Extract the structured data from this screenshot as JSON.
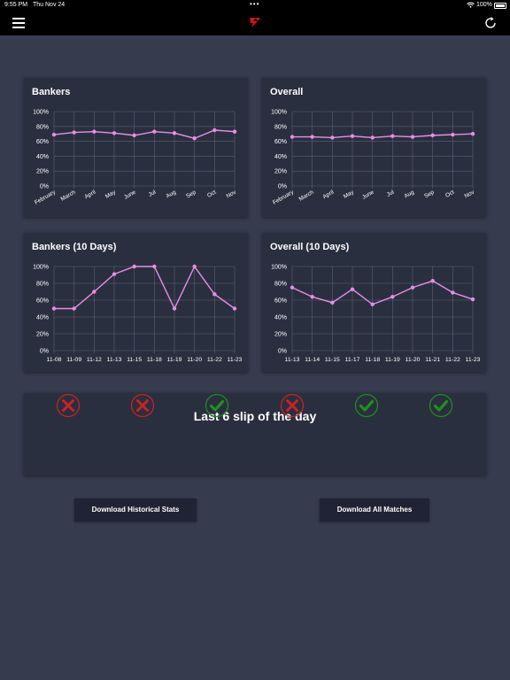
{
  "status_bar": {
    "time": "9:55 PM",
    "date": "Thu Nov 24",
    "battery": "100%"
  },
  "nav": {
    "menu_icon": "hamburger-menu-icon",
    "logo_icon": "app-logo-icon",
    "refresh_icon": "refresh-icon"
  },
  "colors": {
    "background": "#363b4e",
    "card": "#2a2f3f",
    "line": "#e88ee6",
    "grid": "#5a6075",
    "fail": "#cc2222",
    "success": "#1f8f1f"
  },
  "y_ticks": [
    "0%",
    "20%",
    "40%",
    "60%",
    "80%",
    "100%"
  ],
  "chart_data": [
    {
      "type": "line",
      "title": "Bankers",
      "categories": [
        "February",
        "March",
        "April",
        "May",
        "June",
        "Jul",
        "Aug",
        "Sep",
        "Oct",
        "Nov"
      ],
      "values": [
        69,
        72,
        73,
        71,
        68,
        73,
        71,
        64,
        75,
        73
      ],
      "ylim": [
        0,
        100
      ],
      "x_labels_rotated": true,
      "grid": true
    },
    {
      "type": "line",
      "title": "Overall",
      "categories": [
        "February",
        "March",
        "April",
        "May",
        "June",
        "Jul",
        "Aug",
        "Sep",
        "Oct",
        "Nov"
      ],
      "values": [
        66,
        66,
        65,
        67,
        65,
        67,
        66,
        68,
        69,
        70
      ],
      "ylim": [
        0,
        100
      ],
      "x_labels_rotated": true,
      "grid": true
    },
    {
      "type": "line",
      "title": "Bankers (10 Days)",
      "categories": [
        "11-08",
        "11-09",
        "11-12",
        "11-13",
        "11-15",
        "11-18",
        "11-19",
        "11-20",
        "11-22",
        "11-23"
      ],
      "values": [
        50,
        50,
        70,
        91,
        100,
        100,
        50,
        100,
        67,
        50
      ],
      "ylim": [
        0,
        100
      ],
      "x_labels_rotated": false,
      "grid": true
    },
    {
      "type": "line",
      "title": "Overall (10 Days)",
      "categories": [
        "11-13",
        "11-14",
        "11-15",
        "11-17",
        "11-18",
        "11-19",
        "11-20",
        "11-21",
        "11-22",
        "11-23"
      ],
      "values": [
        75,
        64,
        57,
        73,
        55,
        64,
        75,
        83,
        69,
        61
      ],
      "ylim": [
        0,
        100
      ],
      "x_labels_rotated": false,
      "grid": true
    }
  ],
  "slips": {
    "title": "Last 6 slip of the day",
    "results": [
      "fail",
      "fail",
      "success",
      "fail",
      "success",
      "success"
    ]
  },
  "buttons": {
    "historical": "Download Historical Stats",
    "all_matches": "Download All Matches"
  }
}
